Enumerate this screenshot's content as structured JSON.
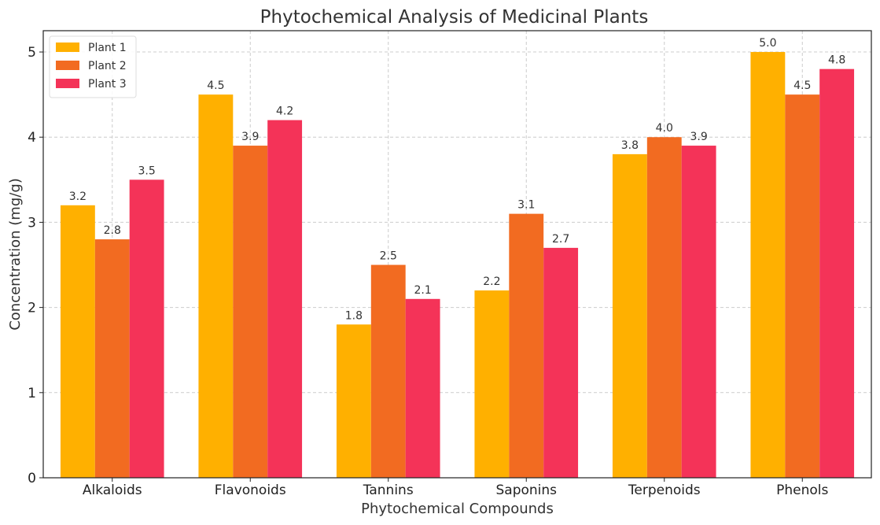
{
  "chart_data": {
    "type": "bar",
    "title": "Phytochemical Analysis of Medicinal Plants",
    "xlabel": "Phytochemical Compounds",
    "ylabel": "Concentration (mg/g)",
    "categories": [
      "Alkaloids",
      "Flavonoids",
      "Tannins",
      "Saponins",
      "Terpenoids",
      "Phenols"
    ],
    "series": [
      {
        "name": "Plant 1",
        "color": "#ffb000",
        "values": [
          3.2,
          4.5,
          1.8,
          2.2,
          3.8,
          5.0
        ],
        "labels": [
          "3.2",
          "4.5",
          "1.8",
          "2.2",
          "3.8",
          "5.0"
        ]
      },
      {
        "name": "Plant 2",
        "color": "#f26b21",
        "values": [
          2.8,
          3.9,
          2.5,
          3.1,
          4.0,
          4.5
        ],
        "labels": [
          "2.8",
          "3.9",
          "2.5",
          "3.1",
          "4.0",
          "4.5"
        ]
      },
      {
        "name": "Plant 3",
        "color": "#f43358",
        "values": [
          3.5,
          4.2,
          2.1,
          2.7,
          3.9,
          4.8
        ],
        "labels": [
          "3.5",
          "4.2",
          "2.1",
          "2.7",
          "3.9",
          "4.8"
        ]
      }
    ],
    "yticks": [
      0,
      1,
      2,
      3,
      4,
      5
    ],
    "ytick_labels": [
      "0",
      "1",
      "2",
      "3",
      "4",
      "5"
    ],
    "ylim": [
      0,
      5.25
    ],
    "grid": true,
    "legend_position": "top-left"
  }
}
